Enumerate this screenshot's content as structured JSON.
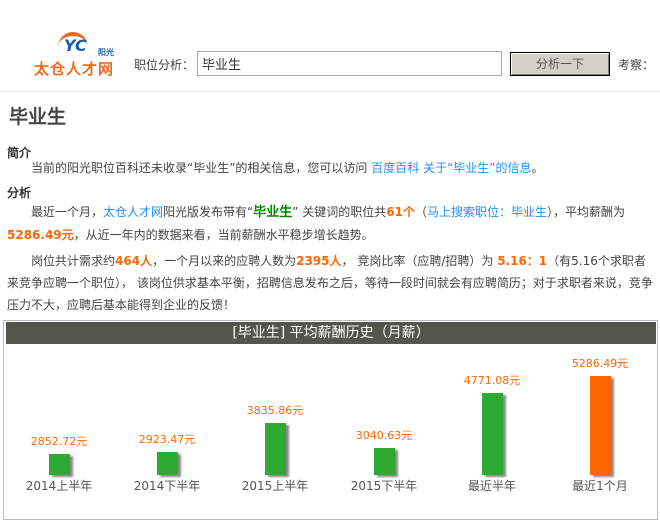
{
  "header": {
    "logo_text": "太仓人才网",
    "logo_badge": "阳光",
    "logo_mark": "YC",
    "search_label": "职位分析：",
    "search_value": "毕业生",
    "analyze_button": "分析一下",
    "observe_label": "考察："
  },
  "page_title": "毕业生",
  "intro": {
    "heading": "简介",
    "text_before": "当前的阳光职位百科还未收录“毕业生”的相关信息，您可以访问 ",
    "link": "百度百科 关于“毕业生”的信息",
    "text_after": "。"
  },
  "analysis": {
    "heading": "分析",
    "p1": {
      "t1": "最近一个月，",
      "site_link": "太仓人才网",
      "t2": "阳光版发布带有“",
      "keyword": "毕业生",
      "t3": "” 关键词的职位共",
      "count": "61个",
      "t4": "（",
      "search_link": "马上搜索职位：毕业生",
      "t5": "），平均薪酬为",
      "avg": "5286.49元",
      "t6": "，从近一年内的数据来看，当前薪酬水平稳步增长趋势。"
    },
    "p2": {
      "t1": "岗位共计需求约",
      "demand": "464人",
      "t2": "，一个月以来的应聘人数为",
      "applicants": "2395人",
      "t3": "， 竞岗比率（应聘/招聘）为 ",
      "ratio": "5.16：1",
      "t4": "（有5.16个求职者来竞争应聘一个职位）， 该岗位供求基本平衡，招聘信息发布之后，等待一段时间就会有应聘简历；对于求职者来说，竞争压力不大，应聘后基本能得到企业的反馈！"
    }
  },
  "chart_data": {
    "type": "bar",
    "title": "[毕业生] 平均薪酬历史（月薪）",
    "categories": [
      "2014上半年",
      "2014下半年",
      "2015上半年",
      "2015下半年",
      "最近半年",
      "最近1个月"
    ],
    "values": [
      2852.72,
      2923.47,
      3835.86,
      3040.63,
      4771.08,
      5286.49
    ],
    "value_labels": [
      "2852.72元",
      "2923.47元",
      "3835.86元",
      "3040.63元",
      "4771.08元",
      "5286.49元"
    ],
    "colors": [
      "#2eaa33",
      "#2eaa33",
      "#2eaa33",
      "#2eaa33",
      "#2eaa33",
      "#ff6600"
    ]
  }
}
